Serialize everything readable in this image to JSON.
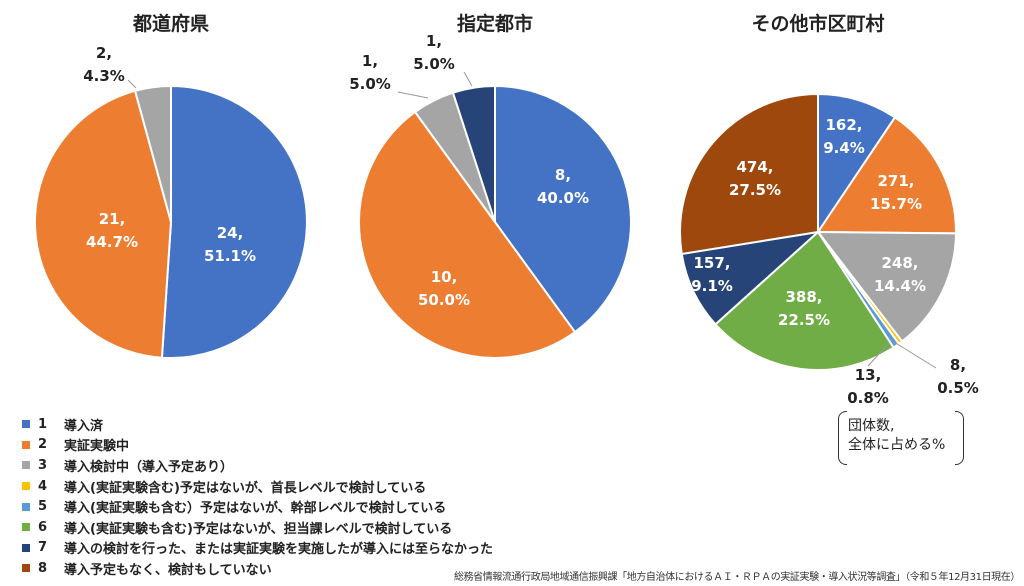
{
  "chart_data": [
    {
      "type": "pie",
      "title": "都道府県",
      "slices": [
        {
          "category": "1",
          "value": 24,
          "label": [
            "24,",
            "51.1%"
          ]
        },
        {
          "category": "2",
          "value": 21,
          "label": [
            "21,",
            "44.7%"
          ]
        },
        {
          "category": "3",
          "value": 2,
          "label": [
            "2,",
            "4.3%"
          ]
        }
      ]
    },
    {
      "type": "pie",
      "title": "指定都市",
      "slices": [
        {
          "category": "1",
          "value": 8,
          "label": [
            "8,",
            "40.0%"
          ]
        },
        {
          "category": "2",
          "value": 10,
          "label": [
            "10,",
            "50.0%"
          ]
        },
        {
          "category": "3",
          "value": 1,
          "label": [
            "1,",
            "5.0%"
          ]
        },
        {
          "category": "7",
          "value": 1,
          "label": [
            "1,",
            "5.0%"
          ]
        }
      ]
    },
    {
      "type": "pie",
      "title": "その他市区町村",
      "slices": [
        {
          "category": "1",
          "value": 162,
          "label": [
            "162,",
            "9.4%"
          ]
        },
        {
          "category": "2",
          "value": 271,
          "label": [
            "271,",
            "15.7%"
          ]
        },
        {
          "category": "3",
          "value": 248,
          "label": [
            "248,",
            "14.4%"
          ]
        },
        {
          "category": "4",
          "value": 8,
          "label": [
            "8,",
            "0.5%"
          ]
        },
        {
          "category": "5",
          "value": 13,
          "label": [
            "13,",
            "0.8%"
          ]
        },
        {
          "category": "6",
          "value": 388,
          "label": [
            "388,",
            "22.5%"
          ]
        },
        {
          "category": "7",
          "value": 157,
          "label": [
            "157,",
            "9.1%"
          ]
        },
        {
          "category": "8",
          "value": 474,
          "label": [
            "474,",
            "27.5%"
          ]
        }
      ]
    }
  ],
  "colors": {
    "1": "#4472c4",
    "2": "#ed7d31",
    "3": "#a5a5a5",
    "4": "#ffc000",
    "5": "#5b9bd5",
    "6": "#70ad47",
    "7": "#264478",
    "8": "#9e480e"
  },
  "legend": [
    {
      "num": "1",
      "text": "導入済"
    },
    {
      "num": "2",
      "text": "実証実験中"
    },
    {
      "num": "3",
      "text": "導入検討中（導入予定あり）"
    },
    {
      "num": "4",
      "text": "導入(実証実験含む)予定はないが、首長レベルで検討している"
    },
    {
      "num": "5",
      "text": "導入(実証実験も含む）予定はないが、幹部レベルで検討している"
    },
    {
      "num": "6",
      "text": "導入(実証実験も含む)予定はないが、担当課レベルで検討している"
    },
    {
      "num": "7",
      "text": "導入の検討を行った、または実証実験を実施したが導入には至らなかった"
    },
    {
      "num": "8",
      "text": "導入予定もなく、検討もしていない"
    }
  ],
  "note": [
    "団体数,",
    "全体に占める%"
  ],
  "source": "総務省情報流通行政局地域通信振興課「地方自治体におけるＡＩ・ＲＰＡの実証実験・導入状況等調査」（令和５年12月31日現在）"
}
